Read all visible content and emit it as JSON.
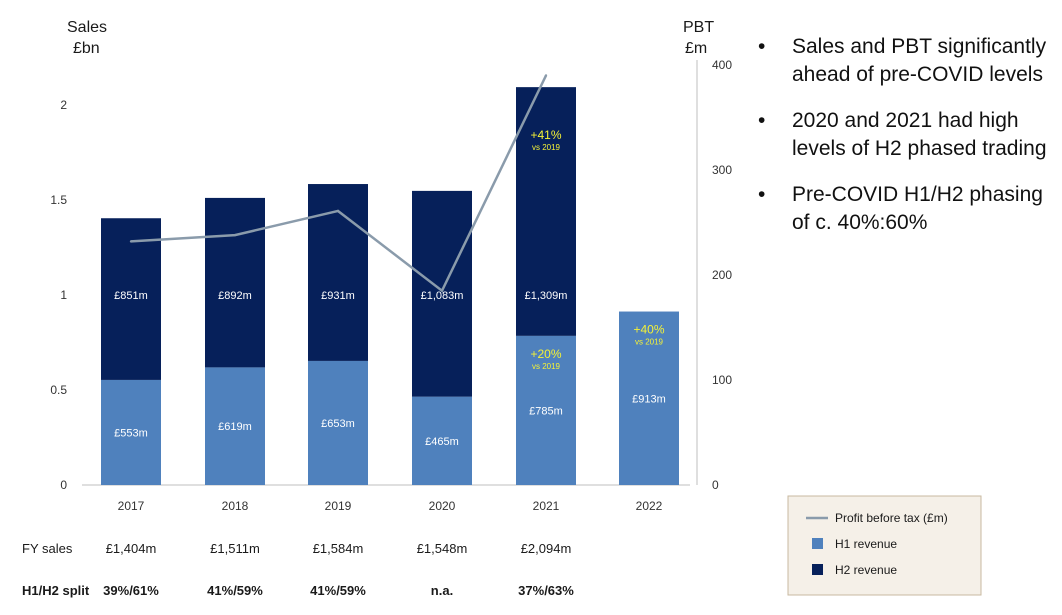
{
  "chart_data": {
    "type": "bar",
    "stacked": true,
    "categories": [
      "2017",
      "2018",
      "2019",
      "2020",
      "2021",
      "2022"
    ],
    "series": [
      {
        "name": "H1 revenue",
        "values": [
          0.553,
          0.619,
          0.653,
          0.465,
          0.785,
          0.913
        ],
        "labels": [
          "£553m",
          "£619m",
          "£653m",
          "£465m",
          "£785m",
          "£913m"
        ],
        "color": "#4f81bd"
      },
      {
        "name": "H2 revenue",
        "values": [
          0.851,
          0.892,
          0.931,
          1.083,
          1.309,
          null
        ],
        "labels": [
          "£851m",
          "£892m",
          "£931m",
          "£1,083m",
          "£1,309m",
          ""
        ],
        "color": "#06205a"
      }
    ],
    "line_series": {
      "name": "Profit before tax (£m)",
      "values": [
        232,
        238,
        261,
        185,
        390,
        null
      ],
      "color": "#8a9bab"
    },
    "left_axis": {
      "title_line1": "Sales",
      "title_line2": "£bn",
      "ylim": [
        0,
        2.3
      ],
      "ticks": [
        "0",
        "0.5",
        "1",
        "1.5",
        "2"
      ],
      "tick_values": [
        0,
        0.5,
        1,
        1.5,
        2
      ]
    },
    "right_axis": {
      "title_line1": "PBT",
      "title_line2": "£m",
      "ylim": [
        0,
        400
      ],
      "ticks": [
        "0",
        "100",
        "200",
        "300",
        "400"
      ],
      "tick_values": [
        0,
        100,
        200,
        300,
        400
      ]
    },
    "annotations": [
      {
        "category": "2021",
        "segment": "H2",
        "main": "+41%",
        "sub": "vs 2019"
      },
      {
        "category": "2021",
        "segment": "H1",
        "main": "+20%",
        "sub": "vs 2019"
      },
      {
        "category": "2022",
        "segment": "H1",
        "main": "+40%",
        "sub": "vs 2019"
      }
    ],
    "table_rows": [
      {
        "label": "FY sales",
        "values": [
          "£1,404m",
          "£1,511m",
          "£1,584m",
          "£1,548m",
          "£2,094m",
          ""
        ],
        "bold": false
      },
      {
        "label": "H1/H2 split",
        "values": [
          "39%/61%",
          "41%/59%",
          "41%/59%",
          "n.a.",
          "37%/63%",
          ""
        ],
        "bold": true
      }
    ],
    "legend": {
      "placement": "bottom-right",
      "background": "#f5f0e8",
      "items": [
        "Profit before tax (£m)",
        "H1 revenue",
        "H2 revenue"
      ]
    }
  },
  "bullets": [
    "Sales and PBT significantly ahead of pre-COVID levels",
    "2020 and 2021 had high levels of H2 phased trading",
    "Pre-COVID H1/H2 phasing of c. 40%:60%"
  ],
  "bullet_glyph": "•"
}
